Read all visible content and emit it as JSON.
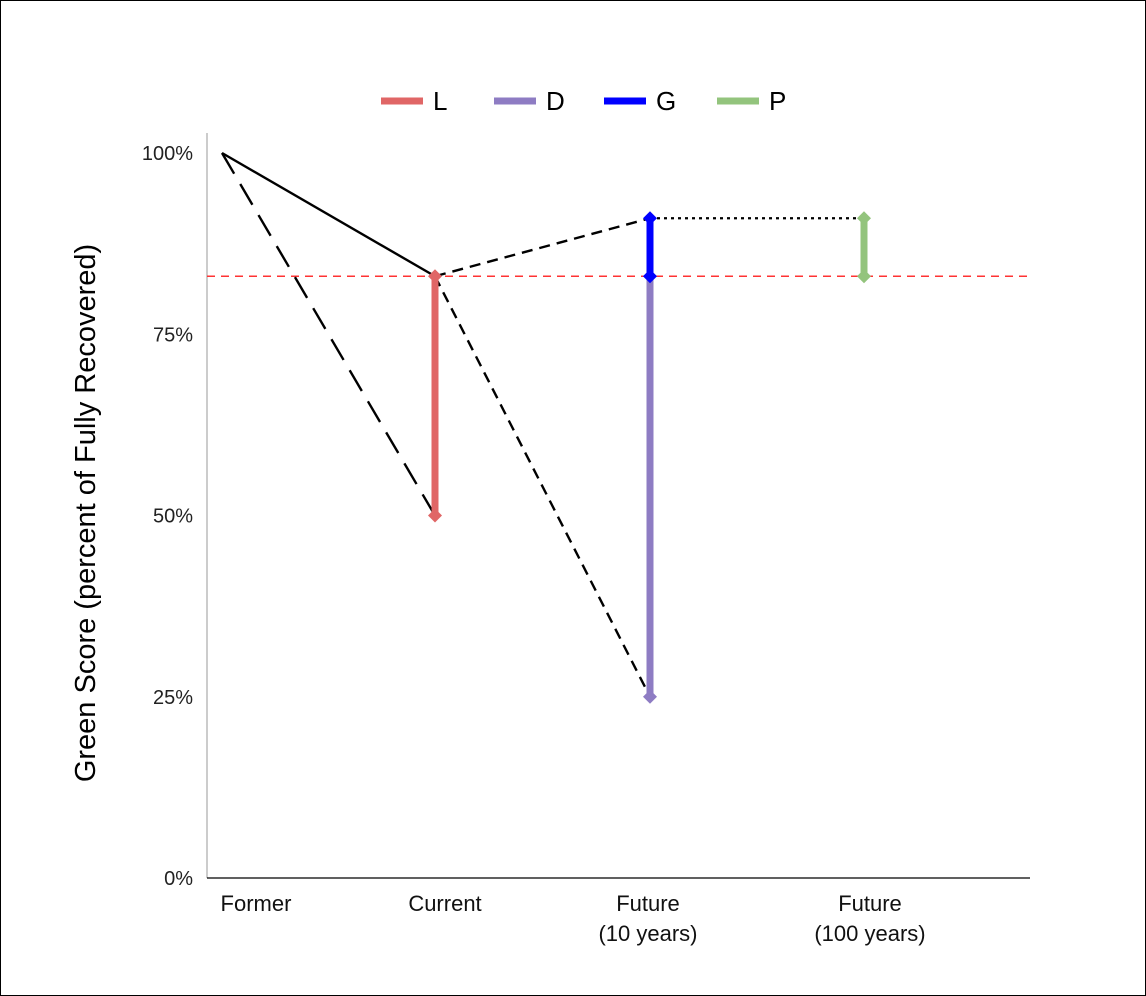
{
  "chart_data": {
    "type": "line",
    "title": "",
    "ylabel": "Green Score (percent of Fully Recovered)",
    "xlabel": "",
    "ylim": [
      0,
      100
    ],
    "y_ticks": [
      "0%",
      "25%",
      "50%",
      "75%",
      "100%"
    ],
    "categories": [
      [
        "Former"
      ],
      [
        "Current"
      ],
      [
        "Future",
        "(10 years)"
      ],
      [
        "Future",
        "(100 years)"
      ]
    ],
    "reference_line": {
      "y": 83,
      "style": "dashed",
      "color": "#ff3333"
    },
    "trend_lines": [
      {
        "points": [
          [
            0,
            100
          ],
          [
            1,
            83
          ]
        ],
        "style": "solid",
        "color": "#000000"
      },
      {
        "points": [
          [
            0,
            100
          ],
          [
            1,
            50
          ]
        ],
        "style": "long-dash",
        "color": "#000000"
      },
      {
        "points": [
          [
            1,
            83
          ],
          [
            2,
            91
          ]
        ],
        "style": "dashed",
        "color": "#000000"
      },
      {
        "points": [
          [
            1,
            83
          ],
          [
            2,
            25
          ]
        ],
        "style": "dashed",
        "color": "#000000"
      },
      {
        "points": [
          [
            2,
            91
          ],
          [
            3,
            91
          ]
        ],
        "style": "dotted",
        "color": "#000000"
      }
    ],
    "series": [
      {
        "name": "L",
        "color": "#e06666",
        "x": 1,
        "from": 50,
        "to": 83
      },
      {
        "name": "D",
        "color": "#8e7cc3",
        "x": 2,
        "from": 25,
        "to": 83
      },
      {
        "name": "G",
        "color": "#0000ff",
        "x": 2,
        "from": 83,
        "to": 91
      },
      {
        "name": "P",
        "color": "#93c47d",
        "x": 3,
        "from": 83,
        "to": 91
      }
    ],
    "legend": {
      "position": "top-center"
    },
    "grid": false
  }
}
